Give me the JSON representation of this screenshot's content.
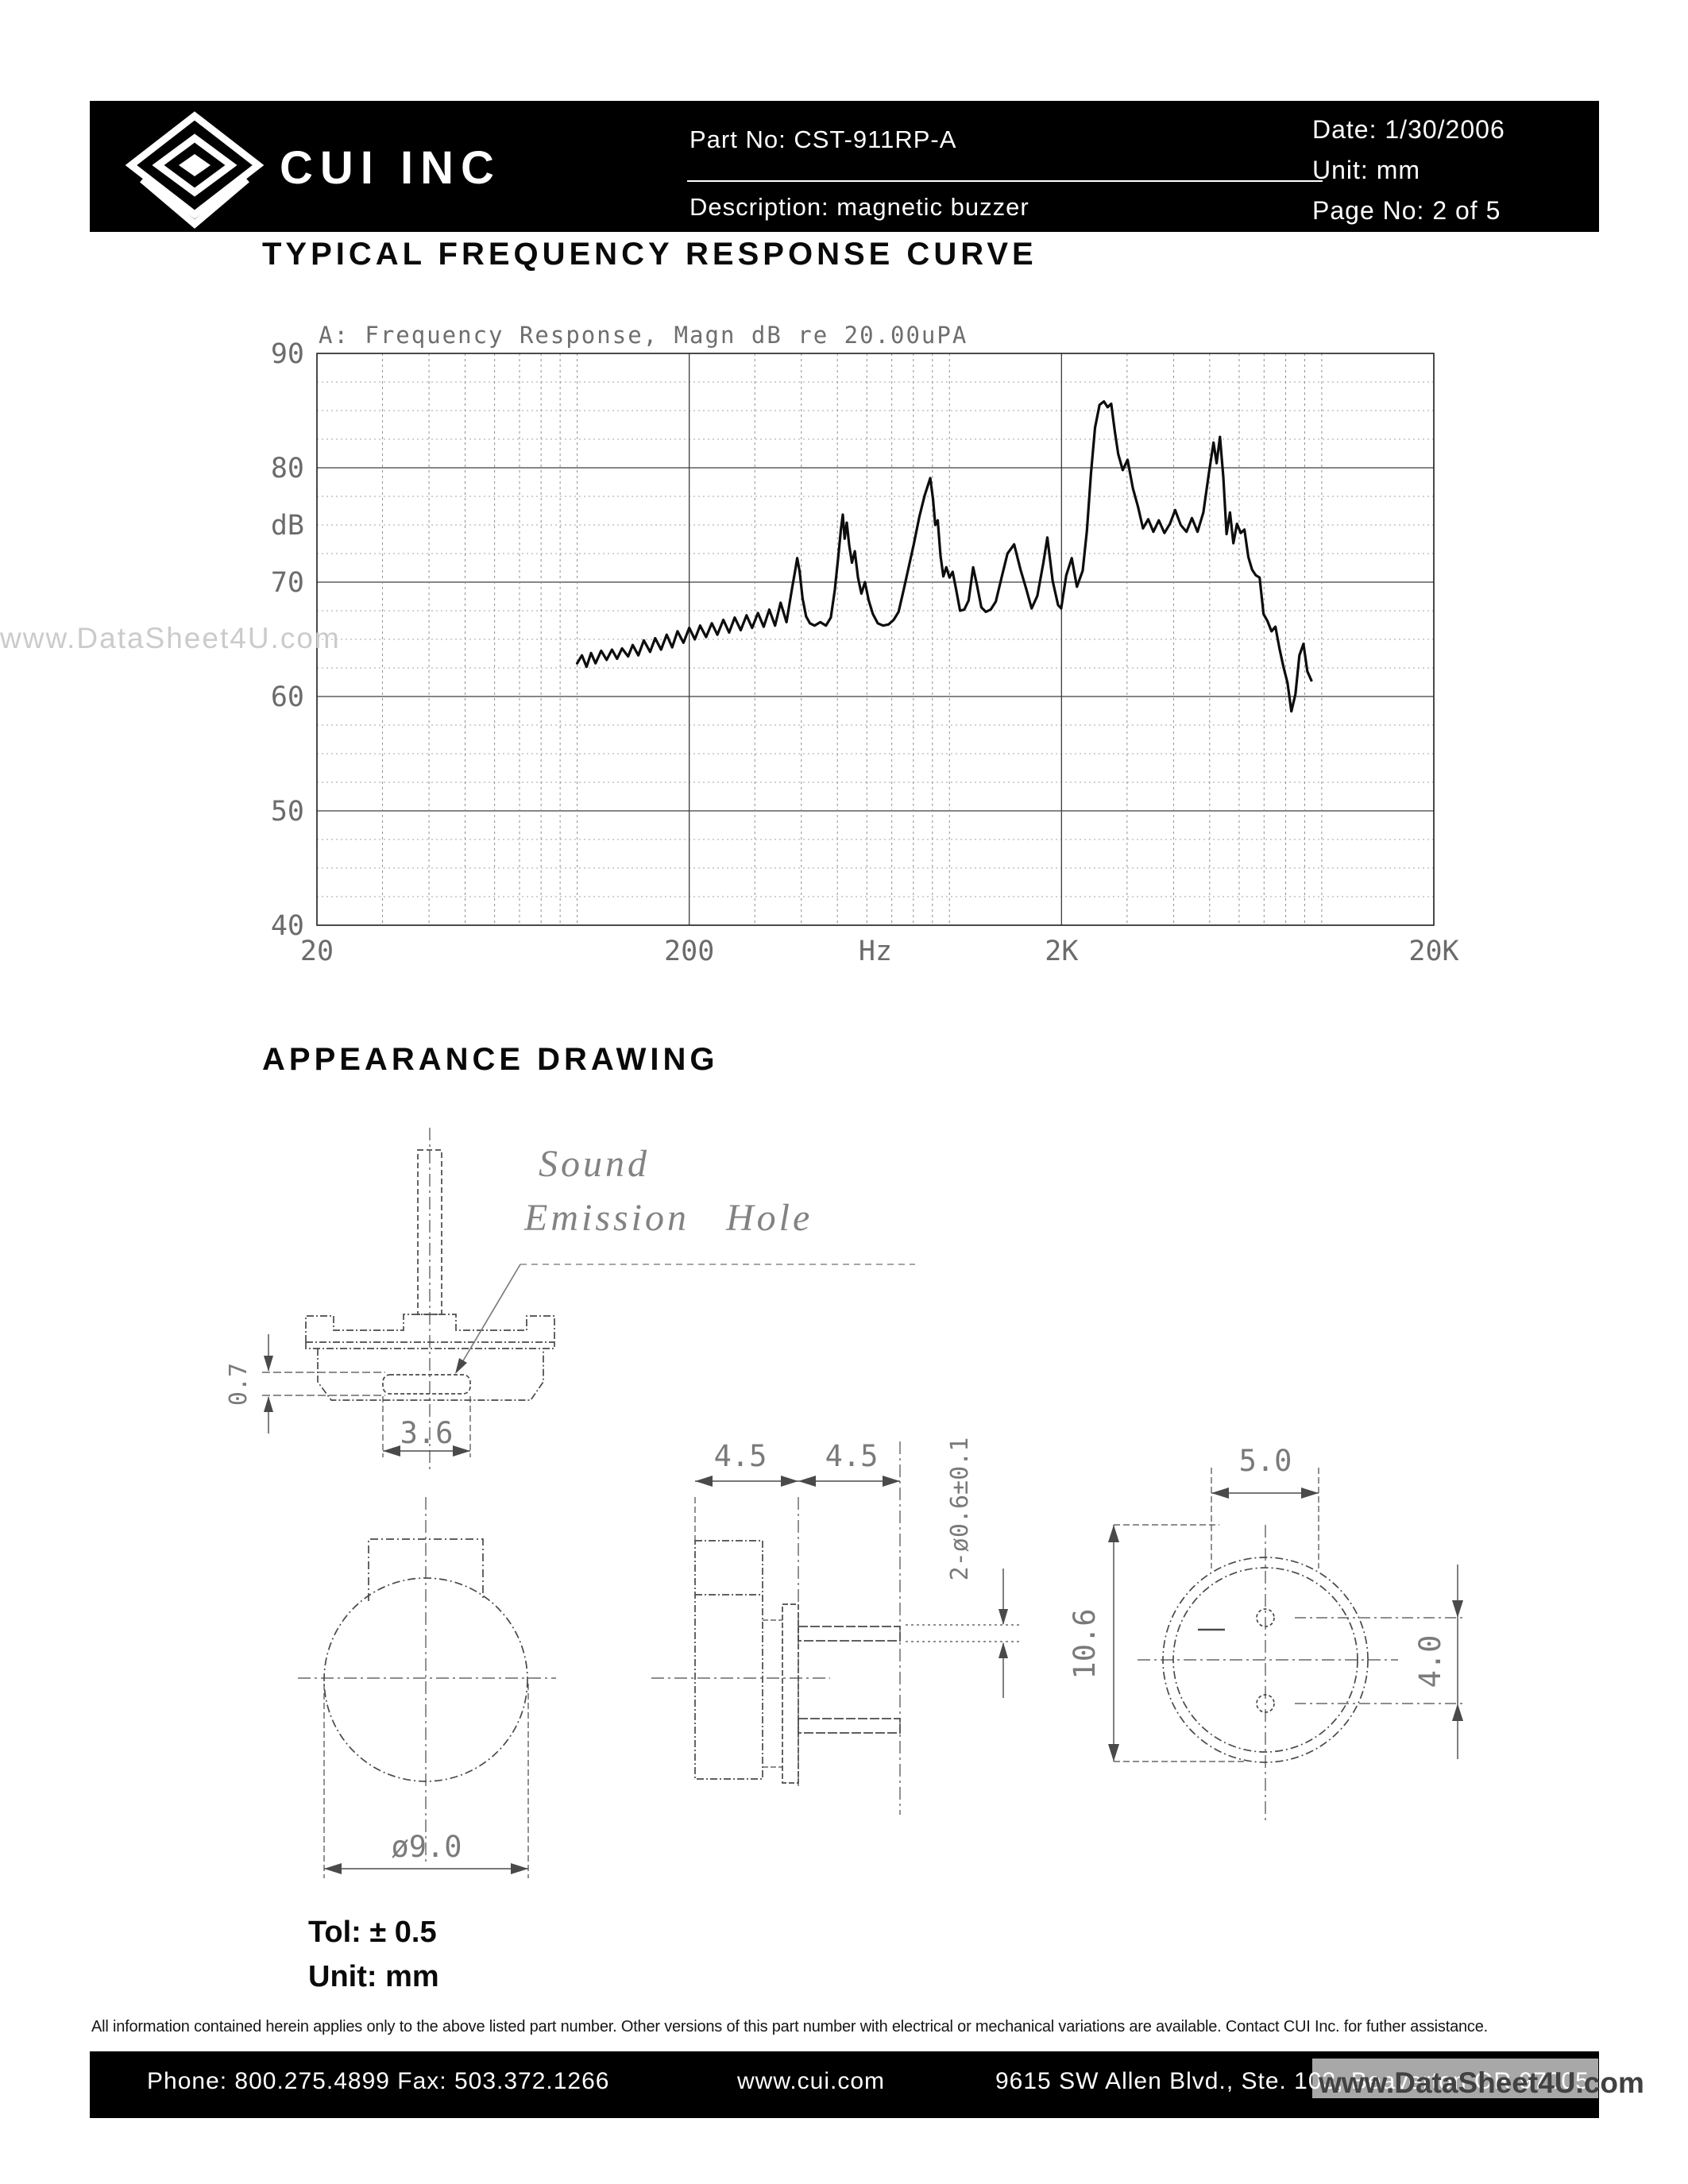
{
  "header": {
    "brand": "CUI INC",
    "part_no": "Part No: CST-911RP-A",
    "description": "Description: magnetic buzzer",
    "date": "Date: 1/30/2006",
    "unit": "Unit: mm",
    "page_no": "Page No: 2 of 5"
  },
  "sections": {
    "frequency_heading": "TYPICAL FREQUENCY RESPONSE CURVE",
    "appearance_heading": "APPEARANCE DRAWING"
  },
  "watermark": {
    "side_text": "www.DataSheet4U.com",
    "footer_text": "www.DataSheet4U.com"
  },
  "chart_data": {
    "type": "line",
    "title": "A: Frequency Response, Magn dB re 20.00uPA",
    "ylabel": "dB",
    "x_unit_label": "Hz",
    "xscale": "log",
    "xlim": [
      20,
      20000
    ],
    "ylim": [
      40,
      90
    ],
    "x_tick_labels": [
      {
        "value": 20,
        "label": "20"
      },
      {
        "value": 200,
        "label": "200"
      },
      {
        "value": 2000,
        "label": "2K"
      },
      {
        "value": 20000,
        "label": "20K"
      }
    ],
    "y_ticks": [
      90,
      80,
      70,
      60,
      50,
      40
    ],
    "grid": true,
    "series": [
      {
        "name": "frequency-response",
        "points": [
          [
            100,
            62.9
          ],
          [
            103,
            63.6
          ],
          [
            106,
            62.6
          ],
          [
            109,
            63.8
          ],
          [
            112,
            62.9
          ],
          [
            116,
            64.0
          ],
          [
            120,
            63.2
          ],
          [
            124,
            64.1
          ],
          [
            128,
            63.3
          ],
          [
            132,
            64.2
          ],
          [
            137,
            63.5
          ],
          [
            141,
            64.5
          ],
          [
            146,
            63.6
          ],
          [
            151,
            64.9
          ],
          [
            157,
            63.9
          ],
          [
            162,
            65.1
          ],
          [
            168,
            64.1
          ],
          [
            174,
            65.4
          ],
          [
            180,
            64.3
          ],
          [
            186,
            65.7
          ],
          [
            193,
            64.7
          ],
          [
            200,
            66.0
          ],
          [
            207,
            65.0
          ],
          [
            214,
            66.2
          ],
          [
            222,
            65.2
          ],
          [
            230,
            66.4
          ],
          [
            238,
            65.4
          ],
          [
            247,
            66.7
          ],
          [
            256,
            65.6
          ],
          [
            265,
            66.9
          ],
          [
            275,
            65.8
          ],
          [
            285,
            67.1
          ],
          [
            295,
            66.0
          ],
          [
            306,
            67.3
          ],
          [
            317,
            66.1
          ],
          [
            328,
            67.6
          ],
          [
            340,
            66.2
          ],
          [
            352,
            68.2
          ],
          [
            365,
            66.5
          ],
          [
            378,
            69.5
          ],
          [
            385,
            71.0
          ],
          [
            390,
            72.1
          ],
          [
            396,
            70.9
          ],
          [
            403,
            68.6
          ],
          [
            412,
            67.0
          ],
          [
            422,
            66.4
          ],
          [
            434,
            66.2
          ],
          [
            450,
            66.5
          ],
          [
            466,
            66.2
          ],
          [
            480,
            66.9
          ],
          [
            492,
            69.3
          ],
          [
            503,
            72.3
          ],
          [
            511,
            74.6
          ],
          [
            517,
            75.9
          ],
          [
            523,
            73.8
          ],
          [
            530,
            75.2
          ],
          [
            538,
            73.2
          ],
          [
            547,
            71.7
          ],
          [
            557,
            72.7
          ],
          [
            568,
            70.4
          ],
          [
            580,
            69.0
          ],
          [
            593,
            70.0
          ],
          [
            607,
            68.4
          ],
          [
            623,
            67.2
          ],
          [
            642,
            66.4
          ],
          [
            663,
            66.2
          ],
          [
            686,
            66.3
          ],
          [
            708,
            66.7
          ],
          [
            730,
            67.4
          ],
          [
            752,
            69.2
          ],
          [
            776,
            71.2
          ],
          [
            802,
            73.3
          ],
          [
            830,
            75.7
          ],
          [
            858,
            77.6
          ],
          [
            888,
            79.1
          ],
          [
            903,
            77.3
          ],
          [
            916,
            75.0
          ],
          [
            930,
            75.4
          ],
          [
            946,
            72.3
          ],
          [
            963,
            70.5
          ],
          [
            981,
            71.3
          ],
          [
            1000,
            70.4
          ],
          [
            1020,
            70.9
          ],
          [
            1043,
            69.3
          ],
          [
            1068,
            67.5
          ],
          [
            1096,
            67.6
          ],
          [
            1126,
            68.4
          ],
          [
            1158,
            71.3
          ],
          [
            1186,
            69.7
          ],
          [
            1218,
            67.8
          ],
          [
            1252,
            67.4
          ],
          [
            1290,
            67.6
          ],
          [
            1332,
            68.3
          ],
          [
            1378,
            70.3
          ],
          [
            1432,
            72.5
          ],
          [
            1492,
            73.3
          ],
          [
            1552,
            71.1
          ],
          [
            1608,
            69.4
          ],
          [
            1662,
            67.7
          ],
          [
            1722,
            68.8
          ],
          [
            1788,
            71.7
          ],
          [
            1832,
            73.9
          ],
          [
            1894,
            70.1
          ],
          [
            1958,
            68.0
          ],
          [
            1996,
            67.7
          ],
          [
            2060,
            70.6
          ],
          [
            2130,
            72.1
          ],
          [
            2200,
            69.6
          ],
          [
            2280,
            71.0
          ],
          [
            2340,
            74.5
          ],
          [
            2400,
            79.5
          ],
          [
            2460,
            83.5
          ],
          [
            2530,
            85.5
          ],
          [
            2600,
            85.8
          ],
          [
            2660,
            85.3
          ],
          [
            2720,
            85.6
          ],
          [
            2780,
            83.2
          ],
          [
            2840,
            81.2
          ],
          [
            2920,
            79.8
          ],
          [
            3010,
            80.7
          ],
          [
            3110,
            78.2
          ],
          [
            3210,
            76.6
          ],
          [
            3310,
            74.7
          ],
          [
            3420,
            75.5
          ],
          [
            3530,
            74.4
          ],
          [
            3650,
            75.4
          ],
          [
            3780,
            74.3
          ],
          [
            3910,
            75.1
          ],
          [
            4040,
            76.3
          ],
          [
            4180,
            75.0
          ],
          [
            4330,
            74.4
          ],
          [
            4480,
            75.6
          ],
          [
            4640,
            74.4
          ],
          [
            4810,
            76.1
          ],
          [
            4980,
            79.6
          ],
          [
            5120,
            82.2
          ],
          [
            5220,
            80.4
          ],
          [
            5330,
            82.7
          ],
          [
            5440,
            79.2
          ],
          [
            5550,
            74.2
          ],
          [
            5670,
            76.1
          ],
          [
            5790,
            73.4
          ],
          [
            5920,
            75.1
          ],
          [
            6060,
            74.3
          ],
          [
            6200,
            74.6
          ],
          [
            6350,
            72.2
          ],
          [
            6500,
            71.1
          ],
          [
            6650,
            70.6
          ],
          [
            6810,
            70.4
          ],
          [
            6980,
            67.2
          ],
          [
            7150,
            66.6
          ],
          [
            7330,
            65.7
          ],
          [
            7510,
            66.1
          ],
          [
            7700,
            64.2
          ],
          [
            7890,
            62.6
          ],
          [
            8090,
            61.2
          ],
          [
            8290,
            58.7
          ],
          [
            8500,
            60.2
          ],
          [
            8710,
            63.6
          ],
          [
            8930,
            64.6
          ],
          [
            9150,
            62.2
          ],
          [
            9380,
            61.4
          ]
        ]
      }
    ]
  },
  "drawing": {
    "sound_hole_line1": "Sound",
    "sound_hole_line2": "Emission Hole",
    "dims": {
      "slot_height": "0.7",
      "slot_width": "3.6",
      "body_dia": "ø9.0",
      "pin_len_a": "4.5",
      "pin_len_b": "4.5",
      "pin_dia": "2-ø0.6±0.1",
      "case_height": "10.6",
      "tab_width": "5.0",
      "pin_pitch": "4.0"
    },
    "tol": "Tol: ± 0.5",
    "unit": "Unit: mm"
  },
  "footer": {
    "disclaimer": "All information contained herein applies only to the above listed part number. Other versions of this part number with electrical or mechanical variations are available. Contact CUI Inc. for futher assistance.",
    "phone_fax": "Phone: 800.275.4899  Fax: 503.372.1266",
    "website": "www.cui.com",
    "address": "9615 SW Allen Blvd., Ste. 103, Beaverton OR 97005"
  }
}
